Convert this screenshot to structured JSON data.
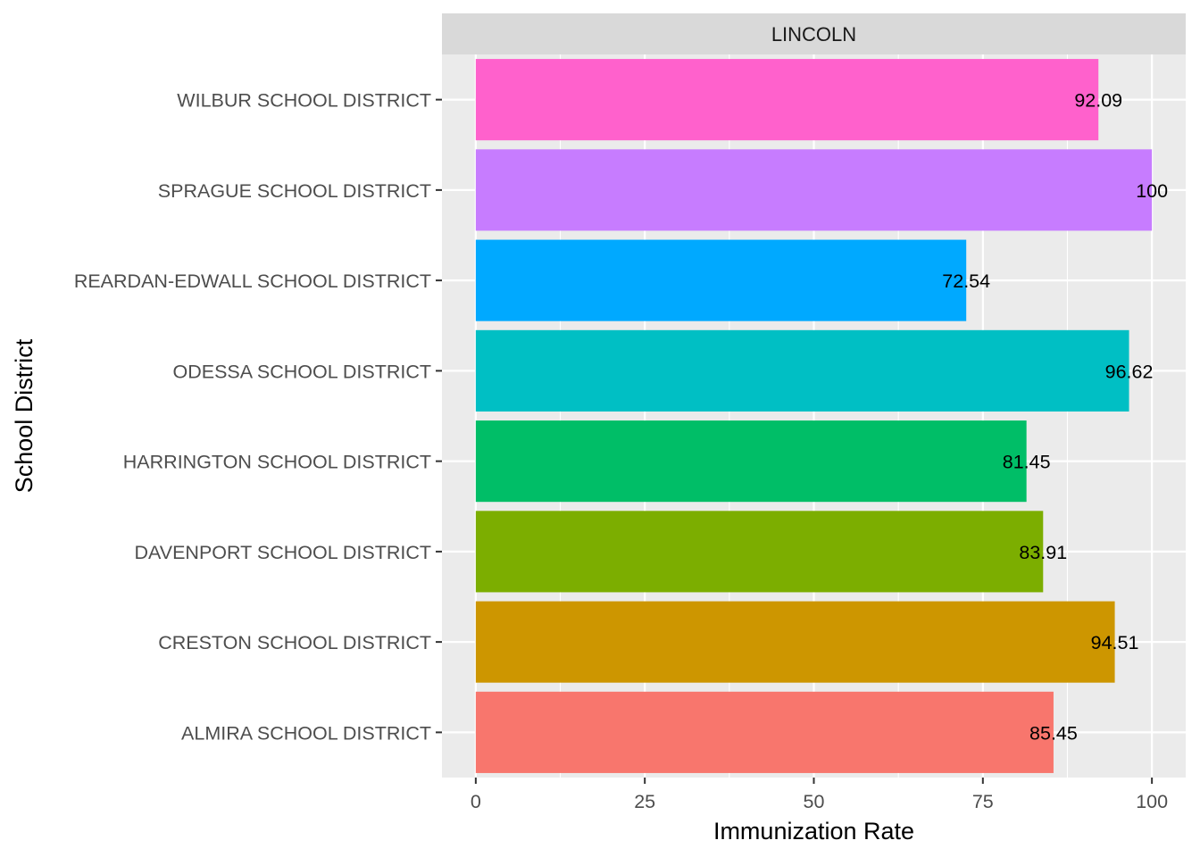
{
  "chart_data": {
    "type": "bar",
    "orientation": "horizontal",
    "facet": "LINCOLN",
    "xlabel": "Immunization Rate",
    "ylabel": "School District",
    "xlim": [
      -5,
      105
    ],
    "xticks": [
      0,
      25,
      50,
      75,
      100
    ],
    "grid": true,
    "legend": "none",
    "categories": [
      "ALMIRA SCHOOL DISTRICT",
      "CRESTON SCHOOL DISTRICT",
      "DAVENPORT SCHOOL DISTRICT",
      "HARRINGTON SCHOOL DISTRICT",
      "ODESSA SCHOOL DISTRICT",
      "REARDAN-EDWALL SCHOOL DISTRICT",
      "SPRAGUE SCHOOL DISTRICT",
      "WILBUR SCHOOL DISTRICT"
    ],
    "values": [
      85.45,
      94.51,
      83.91,
      81.45,
      96.62,
      72.54,
      100,
      92.09
    ],
    "labels": [
      "85.45",
      "94.51",
      "83.91",
      "81.45",
      "96.62",
      "72.54",
      "100",
      "92.09"
    ],
    "colors": [
      "#F8766D",
      "#CD9600",
      "#7CAE00",
      "#00BE67",
      "#00BFC4",
      "#00A9FF",
      "#C77CFF",
      "#FF61CC"
    ]
  }
}
